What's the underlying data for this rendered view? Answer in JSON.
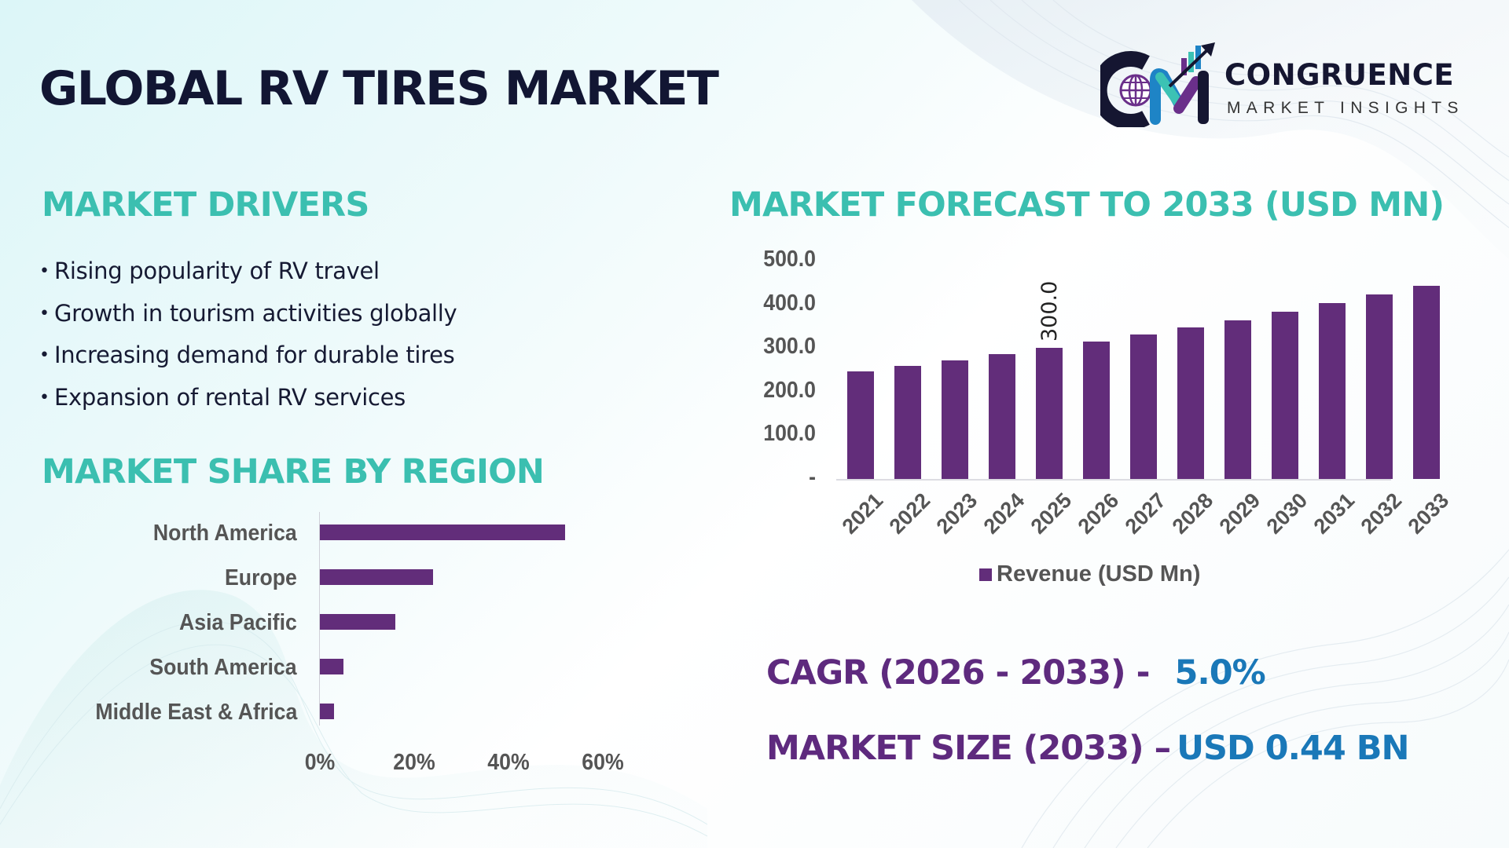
{
  "title": "GLOBAL RV TIRES MARKET",
  "logo": {
    "name": "CONGRUENCE",
    "subtitle": "MARKET INSIGHTS",
    "icon": "cm-globe-growth-logo-icon"
  },
  "drivers": {
    "heading": "MARKET DRIVERS",
    "bullet": "•",
    "items": [
      "Rising popularity of RV travel",
      "Growth in tourism activities globally",
      "Increasing demand for durable tires",
      "Expansion of rental RV services"
    ]
  },
  "region": {
    "heading": "MARKET SHARE BY REGION",
    "ticks": [
      "0%",
      "20%",
      "40%",
      "60%"
    ]
  },
  "forecast": {
    "heading": "MARKET FORECAST TO 2033 (USD MN)",
    "y_ticks": [
      "500.0",
      "400.0",
      "300.0",
      "200.0",
      "100.0",
      "-"
    ],
    "data_label": "300.0",
    "legend": "Revenue (USD Mn)"
  },
  "stats": {
    "cagr_label": "CAGR (2026 - 2033) -",
    "cagr_value": "5.0%",
    "size_label": "MARKET SIZE (2033) –",
    "size_value": "USD 0.44 BN"
  },
  "colors": {
    "bar": "#622d7a",
    "heading": "#3bbfb0",
    "title": "#121633",
    "stat_label": "#5e2a7e",
    "stat_value": "#1a78b8"
  },
  "chart_data": [
    {
      "type": "bar",
      "orientation": "horizontal",
      "title": "MARKET SHARE BY REGION",
      "categories": [
        "North America",
        "Europe",
        "Asia Pacific",
        "South America",
        "Middle East & Africa"
      ],
      "values": [
        52,
        24,
        16,
        5,
        3
      ],
      "unit": "%",
      "xlim": [
        0,
        60
      ],
      "x_ticks": [
        "0%",
        "20%",
        "40%",
        "60%"
      ],
      "grid": false,
      "legend": null
    },
    {
      "type": "bar",
      "orientation": "vertical",
      "title": "MARKET FORECAST TO 2033 (USD MN)",
      "categories": [
        "2021",
        "2022",
        "2023",
        "2024",
        "2025",
        "2026",
        "2027",
        "2028",
        "2029",
        "2030",
        "2031",
        "2032",
        "2033"
      ],
      "series": [
        {
          "name": "Revenue (USD Mn)",
          "values": [
            247,
            259,
            272,
            286,
            300,
            315,
            331,
            347,
            364,
            383,
            402,
            422,
            443
          ]
        }
      ],
      "data_labels": [
        {
          "category": "2025",
          "value": "300.0"
        }
      ],
      "ylim": [
        0,
        500
      ],
      "y_ticks": [
        "-",
        "100.0",
        "200.0",
        "300.0",
        "400.0",
        "500.0"
      ],
      "xlabel": "",
      "ylabel": "",
      "grid": false,
      "legend_position": "bottom"
    }
  ]
}
